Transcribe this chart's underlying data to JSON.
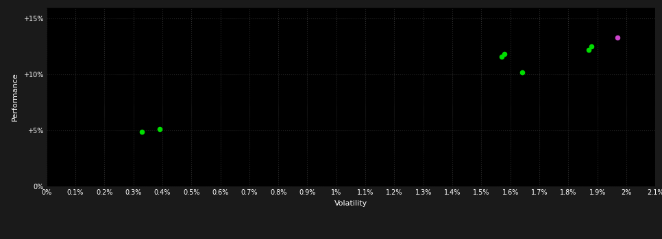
{
  "background_color": "#1a1a1a",
  "plot_bg_color": "#000000",
  "grid_color": "#2a2a2a",
  "text_color": "#ffffff",
  "xlabel": "Volatility",
  "ylabel": "Performance",
  "xlim": [
    0.0,
    0.021
  ],
  "ylim": [
    0.0,
    0.16
  ],
  "xtick_values": [
    0.0,
    0.001,
    0.002,
    0.003,
    0.004,
    0.005,
    0.006,
    0.007,
    0.008,
    0.009,
    0.01,
    0.011,
    0.012,
    0.013,
    0.014,
    0.015,
    0.016,
    0.017,
    0.018,
    0.019,
    0.02,
    0.021
  ],
  "xtick_labels": [
    "0%",
    "0.1%",
    "0.2%",
    "0.3%",
    "0.4%",
    "0.5%",
    "0.6%",
    "0.7%",
    "0.8%",
    "0.9%",
    "1%",
    "1.1%",
    "1.2%",
    "1.3%",
    "1.4%",
    "1.5%",
    "1.6%",
    "1.7%",
    "1.8%",
    "1.9%",
    "2%",
    "2.1%"
  ],
  "ytick_values": [
    0.0,
    0.05,
    0.1,
    0.15
  ],
  "ytick_labels": [
    "0%",
    "+5%",
    "+10%",
    "+15%"
  ],
  "green_points": [
    [
      0.0033,
      0.049
    ],
    [
      0.0039,
      0.051
    ],
    [
      0.0157,
      0.116
    ],
    [
      0.0158,
      0.118
    ],
    [
      0.0164,
      0.102
    ],
    [
      0.0187,
      0.122
    ],
    [
      0.0188,
      0.125
    ]
  ],
  "magenta_points": [
    [
      0.0197,
      0.133
    ]
  ],
  "green_color": "#00dd00",
  "magenta_color": "#cc44cc",
  "marker_size": 30
}
